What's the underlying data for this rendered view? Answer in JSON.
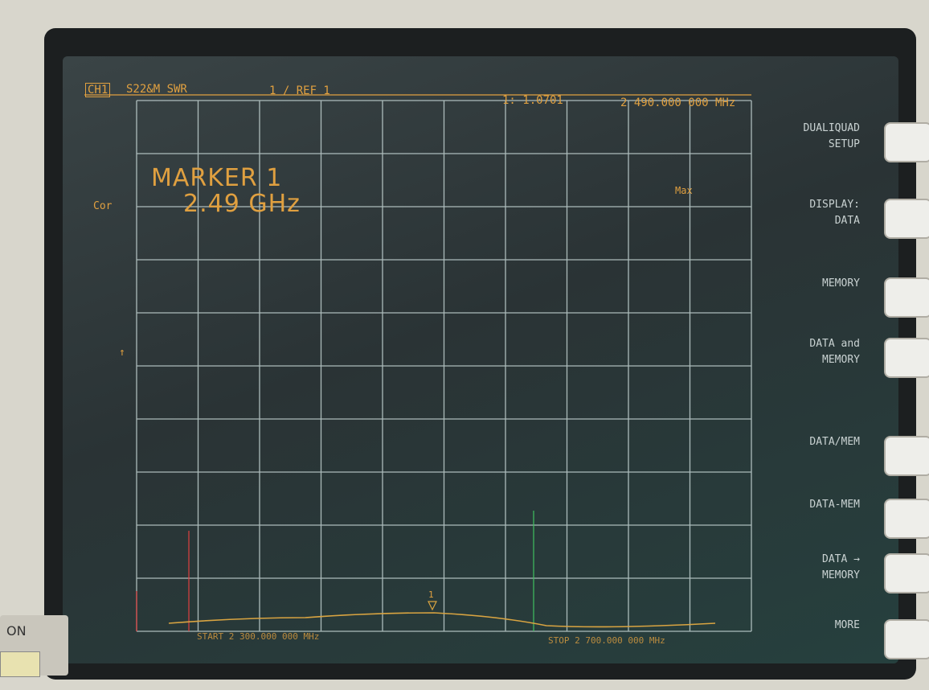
{
  "header": {
    "channel": "CH1",
    "measurement": "S22&M SWR",
    "scale": "1 / REF 1",
    "marker_readout": "1: 1.0701",
    "marker_frequency": "2 490.000 000 MHz"
  },
  "status": {
    "correction": "Cor"
  },
  "marker": {
    "title": "MARKER 1",
    "frequency": "2.49 GHz",
    "search": "Max",
    "symbol": "1"
  },
  "softkeys": [
    {
      "lines": [
        "DUALIQUAD",
        "SETUP"
      ]
    },
    {
      "lines": [
        "DISPLAY:",
        "DATA"
      ]
    },
    {
      "lines": [
        "MEMORY"
      ]
    },
    {
      "lines": [
        "DATA and",
        "MEMORY"
      ]
    },
    {
      "lines": [
        "DATA/MEM"
      ]
    },
    {
      "lines": [
        "DATA-MEM"
      ]
    },
    {
      "lines": [
        "DATA →",
        "MEMORY"
      ]
    },
    {
      "lines": [
        "MORE"
      ]
    }
  ],
  "footer": {
    "start": "START 2 300.000 000 MHz",
    "stop": "STOP 2 700.000 000 MHz"
  },
  "panel": {
    "power": "ON"
  }
}
